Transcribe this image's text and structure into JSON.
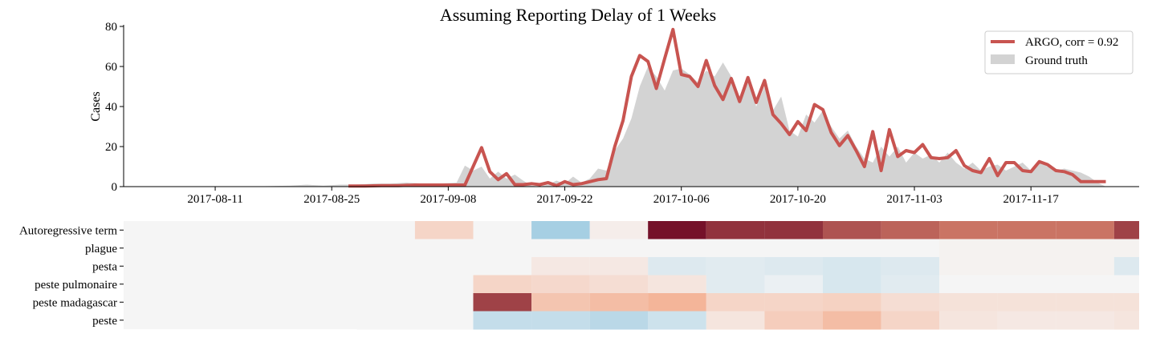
{
  "chart_data": [
    {
      "type": "area",
      "title": "Assuming Reporting Delay of 1 Weeks",
      "ylabel": "Cases",
      "xlabel": "",
      "ylim": [
        0,
        80
      ],
      "yticks": [
        "0",
        "20",
        "40",
        "60",
        "80"
      ],
      "xrange": [
        "2017-07-31",
        "2017-11-30"
      ],
      "xticks": [
        "2017-08-11",
        "2017-08-25",
        "2017-09-08",
        "2017-09-22",
        "2017-10-06",
        "2017-10-20",
        "2017-11-03",
        "2017-11-17"
      ],
      "legend": "top-right",
      "series": [
        {
          "name": "ARGO, corr = 0.92",
          "style": "line",
          "color": "#c85450",
          "x": [
            "2017-08-27",
            "2017-08-29",
            "2017-08-31",
            "2017-09-02",
            "2017-09-04",
            "2017-09-06",
            "2017-09-08",
            "2017-09-10",
            "2017-09-12",
            "2017-09-13",
            "2017-09-14",
            "2017-09-15",
            "2017-09-16",
            "2017-09-17",
            "2017-09-18",
            "2017-09-19",
            "2017-09-20",
            "2017-09-21",
            "2017-09-22",
            "2017-09-23",
            "2017-09-24",
            "2017-09-25",
            "2017-09-26",
            "2017-09-27",
            "2017-09-28",
            "2017-09-29",
            "2017-09-30",
            "2017-10-01",
            "2017-10-02",
            "2017-10-03",
            "2017-10-04",
            "2017-10-05",
            "2017-10-06",
            "2017-10-07",
            "2017-10-08",
            "2017-10-09",
            "2017-10-10",
            "2017-10-11",
            "2017-10-12",
            "2017-10-13",
            "2017-10-14",
            "2017-10-15",
            "2017-10-16",
            "2017-10-17",
            "2017-10-18",
            "2017-10-19",
            "2017-10-20",
            "2017-10-21",
            "2017-10-22",
            "2017-10-23",
            "2017-10-24",
            "2017-10-25",
            "2017-10-26",
            "2017-10-27",
            "2017-10-28",
            "2017-10-29",
            "2017-10-30",
            "2017-10-31",
            "2017-11-01",
            "2017-11-02",
            "2017-11-03",
            "2017-11-04",
            "2017-11-05",
            "2017-11-06",
            "2017-11-07",
            "2017-11-08",
            "2017-11-09",
            "2017-11-10",
            "2017-11-11",
            "2017-11-12",
            "2017-11-13",
            "2017-11-14",
            "2017-11-15",
            "2017-11-16",
            "2017-11-17",
            "2017-11-18",
            "2017-11-19",
            "2017-11-20",
            "2017-11-21",
            "2017-11-22",
            "2017-11-23",
            "2017-11-24",
            "2017-11-25",
            "2017-11-26"
          ],
          "y": [
            0.3,
            0.3,
            0.5,
            0.5,
            0.8,
            0.8,
            0.8,
            0.8,
            19.5,
            7.5,
            3.5,
            6.5,
            1.0,
            1.0,
            1.5,
            1.0,
            2.0,
            0.5,
            2.5,
            1.0,
            1.5,
            2.5,
            3.5,
            4.0,
            20.0,
            33.0,
            55.0,
            65.5,
            62.5,
            49.0,
            64.0,
            78.5,
            56.0,
            55.0,
            50.0,
            63.0,
            50.5,
            43.5,
            54.0,
            42.5,
            54.5,
            42.0,
            53.0,
            36.0,
            31.5,
            26.0,
            32.5,
            28.0,
            41.0,
            38.5,
            27.0,
            20.5,
            25.5,
            18.0,
            10.0,
            27.5,
            8.0,
            28.5,
            15.0,
            18.0,
            17.0,
            21.0,
            14.5,
            14.0,
            14.5,
            18.0,
            10.5,
            8.0,
            7.0,
            14.0,
            5.5,
            12.0,
            12.0,
            8.0,
            7.5,
            12.5,
            11.0,
            8.0,
            7.5,
            6.0,
            2.5,
            2.5,
            2.5,
            2.5
          ]
        },
        {
          "name": "Ground truth",
          "style": "area",
          "color": "#d3d3d3",
          "x": [
            "2017-08-07",
            "2017-08-15",
            "2017-08-20",
            "2017-08-22",
            "2017-08-24",
            "2017-08-26",
            "2017-08-28",
            "2017-08-30",
            "2017-09-01",
            "2017-09-03",
            "2017-09-05",
            "2017-09-07",
            "2017-09-09",
            "2017-09-10",
            "2017-09-11",
            "2017-09-12",
            "2017-09-13",
            "2017-09-14",
            "2017-09-15",
            "2017-09-16",
            "2017-09-17",
            "2017-09-18",
            "2017-09-19",
            "2017-09-20",
            "2017-09-21",
            "2017-09-22",
            "2017-09-23",
            "2017-09-24",
            "2017-09-25",
            "2017-09-26",
            "2017-09-27",
            "2017-09-28",
            "2017-09-29",
            "2017-09-30",
            "2017-10-01",
            "2017-10-02",
            "2017-10-03",
            "2017-10-04",
            "2017-10-05",
            "2017-10-06",
            "2017-10-07",
            "2017-10-08",
            "2017-10-09",
            "2017-10-10",
            "2017-10-11",
            "2017-10-12",
            "2017-10-13",
            "2017-10-14",
            "2017-10-15",
            "2017-10-16",
            "2017-10-17",
            "2017-10-18",
            "2017-10-19",
            "2017-10-20",
            "2017-10-21",
            "2017-10-22",
            "2017-10-23",
            "2017-10-24",
            "2017-10-25",
            "2017-10-26",
            "2017-10-27",
            "2017-10-28",
            "2017-10-29",
            "2017-10-30",
            "2017-10-31",
            "2017-11-01",
            "2017-11-02",
            "2017-11-03",
            "2017-11-04",
            "2017-11-05",
            "2017-11-06",
            "2017-11-07",
            "2017-11-08",
            "2017-11-09",
            "2017-11-10",
            "2017-11-11",
            "2017-11-12",
            "2017-11-13",
            "2017-11-14",
            "2017-11-15",
            "2017-11-16",
            "2017-11-17",
            "2017-11-18",
            "2017-11-19",
            "2017-11-20",
            "2017-11-21",
            "2017-11-22",
            "2017-11-23",
            "2017-11-24",
            "2017-11-25",
            "2017-11-26"
          ],
          "y": [
            0,
            0,
            0.5,
            1,
            0.5,
            1,
            1,
            1.5,
            1.5,
            2,
            1.5,
            1.5,
            2,
            10.5,
            8,
            10,
            4,
            7.5,
            4,
            6,
            3,
            0.5,
            0,
            1,
            3,
            1.5,
            5,
            2,
            4,
            9,
            8,
            18,
            24,
            34,
            50,
            60,
            55,
            48,
            58,
            59,
            56,
            52,
            58,
            55,
            62,
            55,
            45,
            55,
            40,
            50,
            38,
            45,
            28,
            25,
            36,
            32,
            38,
            30,
            24,
            28,
            20,
            14,
            12,
            20,
            15,
            20,
            12,
            17,
            14,
            16,
            12,
            17,
            12,
            9,
            12,
            8,
            10,
            11,
            8,
            10,
            12,
            8,
            12,
            10,
            8,
            9,
            8,
            7,
            5,
            2,
            0
          ]
        }
      ]
    },
    {
      "type": "heatmap",
      "rows": [
        "Autoregressive term",
        "plague",
        "pesta",
        "peste pulmonaire",
        "peste madagascar",
        "peste"
      ],
      "columns": [
        "2017-08-28",
        "2017-09-04",
        "2017-09-11",
        "2017-09-18",
        "2017-09-25",
        "2017-10-02",
        "2017-10-09",
        "2017-10-16",
        "2017-10-23",
        "2017-10-30",
        "2017-11-06",
        "2017-11-13",
        "2017-11-20",
        "2017-11-27"
      ],
      "values": [
        [
          0,
          0.2,
          0,
          -0.4,
          0.05,
          0.95,
          0.85,
          0.85,
          0.75,
          0.7,
          0.65,
          0.65,
          0.65,
          0.8
        ],
        [
          0,
          0,
          0,
          0,
          0,
          0,
          0,
          0,
          0,
          0,
          0.02,
          0.02,
          0.02,
          0.02
        ],
        [
          0,
          0,
          0,
          0.08,
          0.08,
          -0.12,
          -0.1,
          -0.12,
          -0.15,
          -0.12,
          0.02,
          0.02,
          0.02,
          -0.12
        ],
        [
          0,
          0,
          0.2,
          0.18,
          0.15,
          0.1,
          -0.1,
          -0.05,
          -0.15,
          -0.1,
          0,
          0,
          0,
          0
        ],
        [
          0,
          0,
          0.8,
          0.3,
          0.35,
          0.4,
          0.2,
          0.2,
          0.22,
          0.15,
          0.12,
          0.12,
          0.12,
          0.12
        ],
        [
          0,
          0,
          -0.25,
          -0.25,
          -0.3,
          -0.2,
          0.1,
          0.25,
          0.35,
          0.2,
          0.1,
          0.08,
          0.08,
          0.1
        ]
      ]
    }
  ]
}
